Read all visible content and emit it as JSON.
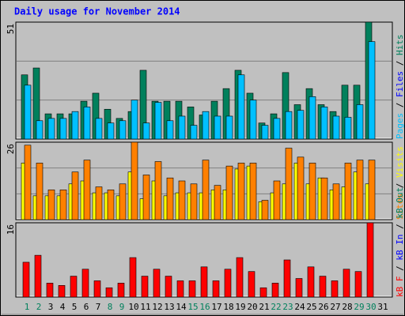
{
  "chart_data": [
    {
      "type": "bar",
      "title": "Daily usage for November 2014",
      "ylim": [
        0,
        51
      ],
      "yticks": [
        51
      ],
      "separator": " / ",
      "label_parts": [
        {
          "text": "Pages",
          "color": "#00c0ff"
        },
        {
          "text": "Files",
          "color": "#0000ff"
        },
        {
          "text": "Hits",
          "color": "#00805c"
        }
      ],
      "series": [
        {
          "name": "Hits",
          "color": "#00805c",
          "values": [
            28,
            31,
            11,
            11,
            11,
            16.5,
            20,
            13,
            9,
            12,
            30,
            16.5,
            16.5,
            16.5,
            14,
            10.5,
            16.5,
            22,
            30,
            20,
            7,
            11,
            29,
            15,
            22,
            15,
            12,
            23.5,
            23.5,
            51,
            null
          ]
        },
        {
          "name": "Files",
          "color": "#00c0ff",
          "values": [
            23.5,
            8,
            9,
            9,
            12,
            14,
            9,
            7,
            8,
            17,
            7,
            16,
            8,
            10,
            6,
            12,
            10,
            10,
            28,
            17,
            6,
            9,
            12,
            12.5,
            18.5,
            14,
            10,
            9.5,
            15,
            42.5,
            null
          ]
        }
      ]
    },
    {
      "type": "bar",
      "ylim": [
        0,
        26
      ],
      "yticks": [
        26
      ],
      "separator": " / ",
      "label_parts": [
        {
          "text": "Sites",
          "color": "#ff8000"
        },
        {
          "text": "Visits",
          "color": "#ffff00"
        }
      ],
      "series": [
        {
          "name": "Visits",
          "color": "#ffff00",
          "values": [
            19,
            8,
            8,
            8,
            12,
            13,
            9,
            9,
            8,
            16,
            7,
            13,
            8,
            9,
            9,
            9,
            10,
            10,
            17,
            18,
            6,
            9,
            12,
            19,
            12,
            14,
            10,
            11,
            16,
            12,
            null
          ]
        },
        {
          "name": "Sites",
          "color": "#ff8000",
          "values": [
            25,
            19,
            10,
            10,
            16,
            20,
            11,
            10,
            12,
            26,
            15,
            19.5,
            14,
            13,
            12,
            20,
            11.5,
            18,
            19,
            19,
            6.5,
            13,
            24,
            21,
            19,
            14,
            12,
            19,
            20,
            20,
            null
          ]
        }
      ]
    },
    {
      "type": "bar",
      "ylim": [
        0,
        16
      ],
      "yticks": [
        16
      ],
      "separator": " / ",
      "label_parts": [
        {
          "text": "kB F",
          "color": "#ff0000"
        },
        {
          "text": "kB In",
          "color": "#0000ff"
        },
        {
          "text": "kB Out",
          "color": "#00805c"
        }
      ],
      "series": [
        {
          "name": "kB F",
          "color": "#ff0000",
          "values": [
            7.5,
            9,
            3,
            2.5,
            4.5,
            6,
            3.5,
            2,
            3,
            8.5,
            4.5,
            6,
            4.5,
            3.5,
            3.5,
            6.5,
            3.5,
            6,
            8.5,
            5.5,
            2,
            3,
            8,
            4,
            6.5,
            4.5,
            3.5,
            6,
            5.5,
            16,
            null
          ]
        }
      ],
      "categories": [
        "1",
        "2",
        "3",
        "4",
        "5",
        "6",
        "7",
        "8",
        "9",
        "10",
        "11",
        "12",
        "13",
        "14",
        "15",
        "16",
        "17",
        "18",
        "19",
        "20",
        "21",
        "22",
        "23",
        "24",
        "25",
        "26",
        "27",
        "28",
        "29",
        "30",
        "31"
      ],
      "category_colors": [
        "#00805c",
        "#00805c",
        "#000000",
        "#000000",
        "#000000",
        "#000000",
        "#000000",
        "#00805c",
        "#00805c",
        "#000000",
        "#000000",
        "#000000",
        "#000000",
        "#000000",
        "#00805c",
        "#00805c",
        "#000000",
        "#000000",
        "#000000",
        "#000000",
        "#000000",
        "#00805c",
        "#00805c",
        "#000000",
        "#000000",
        "#000000",
        "#000000",
        "#000000",
        "#00805c",
        "#00805c",
        "#000000"
      ]
    }
  ]
}
